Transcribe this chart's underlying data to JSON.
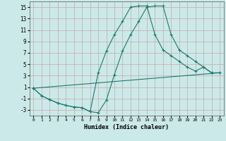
{
  "xlabel": "Humidex (Indice chaleur)",
  "ylabel": "",
  "xlim": [
    -0.5,
    23.5
  ],
  "ylim": [
    -4,
    16
  ],
  "yticks": [
    -3,
    -1,
    1,
    3,
    5,
    7,
    9,
    11,
    13,
    15
  ],
  "xticks": [
    0,
    1,
    2,
    3,
    4,
    5,
    6,
    7,
    8,
    9,
    10,
    11,
    12,
    13,
    14,
    15,
    16,
    17,
    18,
    19,
    20,
    21,
    22,
    23
  ],
  "background_color": "#cce9e9",
  "grid_color": "#b0c8c8",
  "line_color": "#1a7a6e",
  "line1_x": [
    0,
    1,
    2,
    3,
    4,
    5,
    6,
    7,
    8,
    9,
    10,
    11,
    12,
    13,
    14,
    15,
    16,
    17,
    18,
    19,
    20,
    21,
    22,
    23
  ],
  "line1_y": [
    0.8,
    -0.5,
    -1.2,
    -1.8,
    -2.2,
    -2.5,
    -2.6,
    -3.3,
    -3.5,
    -1.3,
    3.2,
    7.3,
    10.2,
    12.5,
    15.0,
    15.2,
    15.2,
    10.2,
    7.5,
    6.5,
    5.5,
    4.5,
    3.5,
    3.5
  ],
  "line2_x": [
    0,
    1,
    2,
    3,
    4,
    5,
    6,
    7,
    8,
    9,
    10,
    11,
    12,
    13,
    14,
    15,
    16,
    17,
    18,
    19,
    20,
    21,
    22
  ],
  "line2_y": [
    0.8,
    -0.5,
    -1.2,
    -1.8,
    -2.2,
    -2.5,
    -2.6,
    -3.3,
    3.5,
    7.3,
    10.2,
    12.5,
    15.0,
    15.2,
    15.2,
    10.2,
    7.5,
    6.5,
    5.5,
    4.5,
    3.8,
    4.5,
    3.5
  ],
  "line3_x": [
    0,
    23
  ],
  "line3_y": [
    0.8,
    3.5
  ]
}
